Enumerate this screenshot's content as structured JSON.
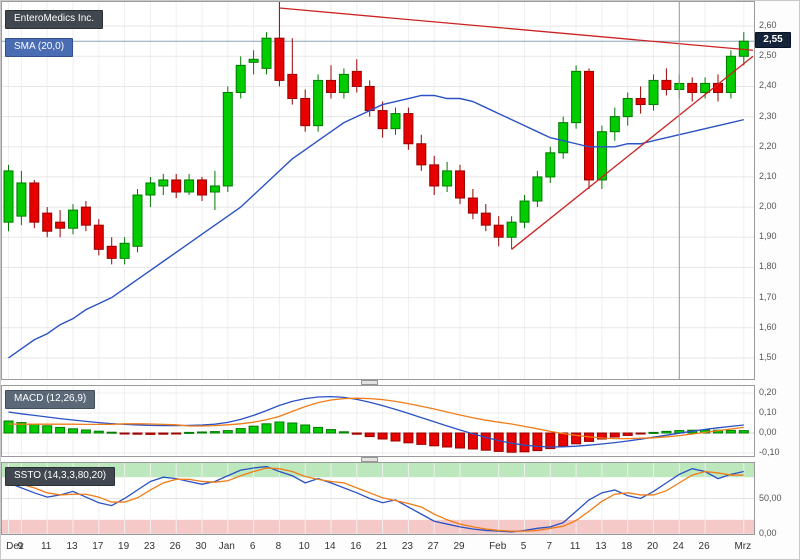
{
  "labels": {
    "instrument": "EnteroMedics Inc.",
    "sma": "SMA (20,0)",
    "macd": "MACD (12,26,9)",
    "ssto": "SSTO (14,3,3,80,20)",
    "current_price": "2,55"
  },
  "colors": {
    "up": "#00cc00",
    "up_border": "#007a00",
    "down": "#e60000",
    "down_border": "#990000",
    "sma": "#2b52c4",
    "signal_orange": "#ef7d18",
    "trend": "#cc2222",
    "last_price_line": "#8aa6b4",
    "overbought_band": "#bde7bd",
    "oversold_band": "#f6c9c9",
    "crosshair": "#999999"
  },
  "chart_data": {
    "type": "candlestick",
    "title": "EnteroMedics Inc.",
    "x_count": 58,
    "x_labels": [
      [
        0,
        "Dez"
      ],
      [
        1,
        "9"
      ],
      [
        3,
        "11"
      ],
      [
        5,
        "13"
      ],
      [
        7,
        "17"
      ],
      [
        9,
        "19"
      ],
      [
        11,
        "23"
      ],
      [
        13,
        "26"
      ],
      [
        15,
        "30"
      ],
      [
        17,
        "Jan"
      ],
      [
        19,
        "6"
      ],
      [
        21,
        "8"
      ],
      [
        23,
        "10"
      ],
      [
        25,
        "14"
      ],
      [
        27,
        "16"
      ],
      [
        29,
        "21"
      ],
      [
        31,
        "23"
      ],
      [
        33,
        "27"
      ],
      [
        35,
        "29"
      ],
      [
        38,
        "Feb"
      ],
      [
        40,
        "5"
      ],
      [
        42,
        "7"
      ],
      [
        44,
        "11"
      ],
      [
        46,
        "13"
      ],
      [
        48,
        "18"
      ],
      [
        50,
        "20"
      ],
      [
        52,
        "24"
      ],
      [
        54,
        "26"
      ],
      [
        57,
        "Mrz"
      ]
    ],
    "price_panel": {
      "ylim": [
        1.43,
        2.68
      ],
      "yticks": [
        "2,60",
        "2,50",
        "2,40",
        "2,30",
        "2,20",
        "2,10",
        "2,00",
        "1,90",
        "1,80",
        "1,70",
        "1,60",
        "1,50"
      ],
      "current_price": 2.55,
      "current_price_label": "2,55",
      "crosshair_index": 52,
      "candles": [
        [
          1.95,
          2.14,
          1.92,
          2.12
        ],
        [
          1.97,
          2.12,
          1.94,
          2.08
        ],
        [
          2.08,
          2.09,
          1.93,
          1.95
        ],
        [
          1.98,
          2.0,
          1.9,
          1.92
        ],
        [
          1.95,
          1.99,
          1.9,
          1.93
        ],
        [
          1.93,
          2.01,
          1.91,
          1.99
        ],
        [
          2.0,
          2.02,
          1.92,
          1.94
        ],
        [
          1.94,
          1.96,
          1.84,
          1.86
        ],
        [
          1.87,
          1.9,
          1.81,
          1.83
        ],
        [
          1.83,
          1.9,
          1.81,
          1.88
        ],
        [
          1.87,
          2.06,
          1.85,
          2.04
        ],
        [
          2.04,
          2.1,
          2.0,
          2.08
        ],
        [
          2.07,
          2.11,
          2.04,
          2.09
        ],
        [
          2.09,
          2.11,
          2.03,
          2.05
        ],
        [
          2.05,
          2.11,
          2.04,
          2.09
        ],
        [
          2.09,
          2.1,
          2.02,
          2.04
        ],
        [
          2.05,
          2.12,
          1.99,
          2.07
        ],
        [
          2.07,
          2.4,
          2.05,
          2.38
        ],
        [
          2.38,
          2.5,
          2.36,
          2.47
        ],
        [
          2.48,
          2.52,
          2.44,
          2.49
        ],
        [
          2.46,
          2.58,
          2.44,
          2.56
        ],
        [
          2.56,
          2.68,
          2.4,
          2.42
        ],
        [
          2.44,
          2.56,
          2.34,
          2.36
        ],
        [
          2.36,
          2.39,
          2.25,
          2.27
        ],
        [
          2.27,
          2.44,
          2.25,
          2.42
        ],
        [
          2.42,
          2.47,
          2.36,
          2.38
        ],
        [
          2.38,
          2.46,
          2.36,
          2.44
        ],
        [
          2.45,
          2.49,
          2.38,
          2.4
        ],
        [
          2.4,
          2.42,
          2.3,
          2.32
        ],
        [
          2.32,
          2.35,
          2.23,
          2.26
        ],
        [
          2.26,
          2.33,
          2.24,
          2.31
        ],
        [
          2.31,
          2.33,
          2.19,
          2.21
        ],
        [
          2.21,
          2.24,
          2.12,
          2.14
        ],
        [
          2.14,
          2.17,
          2.04,
          2.07
        ],
        [
          2.07,
          2.15,
          2.05,
          2.12
        ],
        [
          2.12,
          2.14,
          2.01,
          2.03
        ],
        [
          2.03,
          2.06,
          1.96,
          1.98
        ],
        [
          1.98,
          2.01,
          1.92,
          1.94
        ],
        [
          1.94,
          1.97,
          1.87,
          1.9
        ],
        [
          1.9,
          1.97,
          1.86,
          1.95
        ],
        [
          1.95,
          2.04,
          1.93,
          2.02
        ],
        [
          2.02,
          2.12,
          2.0,
          2.1
        ],
        [
          2.1,
          2.2,
          2.08,
          2.18
        ],
        [
          2.18,
          2.3,
          2.16,
          2.28
        ],
        [
          2.28,
          2.47,
          2.26,
          2.45
        ],
        [
          2.45,
          2.46,
          2.06,
          2.09
        ],
        [
          2.09,
          2.27,
          2.06,
          2.25
        ],
        [
          2.25,
          2.33,
          2.22,
          2.3
        ],
        [
          2.3,
          2.38,
          2.27,
          2.36
        ],
        [
          2.36,
          2.4,
          2.31,
          2.34
        ],
        [
          2.34,
          2.44,
          2.32,
          2.42
        ],
        [
          2.42,
          2.46,
          2.37,
          2.39
        ],
        [
          2.39,
          2.44,
          2.36,
          2.41
        ],
        [
          2.41,
          2.43,
          2.35,
          2.38
        ],
        [
          2.38,
          2.43,
          2.36,
          2.41
        ],
        [
          2.41,
          2.44,
          2.35,
          2.38
        ],
        [
          2.38,
          2.52,
          2.36,
          2.5
        ],
        [
          2.5,
          2.58,
          2.47,
          2.55
        ]
      ],
      "sma20": [
        1.5,
        1.53,
        1.56,
        1.58,
        1.61,
        1.63,
        1.66,
        1.68,
        1.7,
        1.73,
        1.76,
        1.79,
        1.82,
        1.85,
        1.88,
        1.91,
        1.94,
        1.97,
        2.0,
        2.04,
        2.08,
        2.12,
        2.16,
        2.19,
        2.22,
        2.25,
        2.28,
        2.3,
        2.32,
        2.34,
        2.35,
        2.36,
        2.37,
        2.37,
        2.36,
        2.36,
        2.35,
        2.33,
        2.31,
        2.29,
        2.27,
        2.25,
        2.23,
        2.22,
        2.21,
        2.2,
        2.2,
        2.2,
        2.21,
        2.21,
        2.22,
        2.23,
        2.24,
        2.25,
        2.26,
        2.27,
        2.28,
        2.29
      ],
      "trendlines": [
        {
          "x1": 21,
          "p1": 2.66,
          "x2": 58,
          "p2": 2.52
        },
        {
          "x1": 39,
          "p1": 1.86,
          "x2": 58,
          "p2": 2.5
        }
      ]
    },
    "macd_panel": {
      "ylim": [
        -0.115,
        0.235
      ],
      "yticks": [
        "0,20",
        "0,10",
        "0,00",
        "-0,10"
      ],
      "histogram": [
        0.06,
        0.052,
        0.044,
        0.036,
        0.028,
        0.021,
        0.015,
        0.009,
        0.004,
        -0.003,
        -0.006,
        -0.007,
        -0.006,
        -0.004,
        0.003,
        0.005,
        0.007,
        0.012,
        0.022,
        0.034,
        0.046,
        0.055,
        0.05,
        0.04,
        0.028,
        0.017,
        0.006,
        -0.006,
        -0.018,
        -0.03,
        -0.04,
        -0.049,
        -0.057,
        -0.064,
        -0.07,
        -0.075,
        -0.08,
        -0.086,
        -0.092,
        -0.096,
        -0.094,
        -0.088,
        -0.078,
        -0.066,
        -0.054,
        -0.042,
        -0.03,
        -0.02,
        -0.012,
        -0.005,
        0.003,
        0.008,
        0.012,
        0.014,
        0.015,
        0.014,
        0.013,
        0.012
      ],
      "macd": [
        0.105,
        0.096,
        0.088,
        0.08,
        0.072,
        0.065,
        0.058,
        0.052,
        0.047,
        0.043,
        0.04,
        0.038,
        0.037,
        0.037,
        0.038,
        0.04,
        0.044,
        0.053,
        0.068,
        0.088,
        0.112,
        0.138,
        0.158,
        0.172,
        0.18,
        0.182,
        0.178,
        0.168,
        0.154,
        0.137,
        0.118,
        0.098,
        0.077,
        0.056,
        0.035,
        0.015,
        -0.004,
        -0.022,
        -0.038,
        -0.051,
        -0.061,
        -0.067,
        -0.07,
        -0.069,
        -0.066,
        -0.061,
        -0.055,
        -0.048,
        -0.04,
        -0.031,
        -0.021,
        -0.011,
        -0.001,
        0.009,
        0.018,
        0.026,
        0.033,
        0.04
      ],
      "signal": [
        0.045,
        0.044,
        0.044,
        0.044,
        0.044,
        0.044,
        0.043,
        0.043,
        0.043,
        0.046,
        0.046,
        0.045,
        0.043,
        0.041,
        0.035,
        0.035,
        0.037,
        0.041,
        0.046,
        0.054,
        0.066,
        0.083,
        0.108,
        0.132,
        0.152,
        0.165,
        0.172,
        0.174,
        0.172,
        0.167,
        0.158,
        0.147,
        0.134,
        0.12,
        0.105,
        0.09,
        0.076,
        0.064,
        0.054,
        0.045,
        0.033,
        0.021,
        0.008,
        -0.003,
        -0.012,
        -0.019,
        -0.025,
        -0.028,
        -0.028,
        -0.026,
        -0.024,
        -0.019,
        -0.013,
        -0.005,
        0.003,
        0.012,
        0.02,
        0.028
      ]
    },
    "ssto_panel": {
      "ylim": [
        0,
        100
      ],
      "yticks": [
        "50,00",
        "0,00"
      ],
      "overbought": 80,
      "oversold": 20,
      "k": [
        72,
        65,
        58,
        52,
        55,
        60,
        52,
        44,
        40,
        50,
        62,
        74,
        80,
        78,
        74,
        70,
        74,
        82,
        90,
        93,
        95,
        88,
        82,
        72,
        78,
        72,
        65,
        58,
        50,
        44,
        48,
        38,
        28,
        18,
        14,
        10,
        7,
        5,
        4,
        3,
        5,
        8,
        10,
        16,
        32,
        48,
        58,
        62,
        54,
        50,
        60,
        72,
        84,
        92,
        88,
        78,
        84,
        88
      ],
      "d": [
        75,
        70,
        65,
        58,
        55,
        56,
        56,
        52,
        45,
        45,
        51,
        62,
        72,
        77,
        77,
        74,
        73,
        75,
        82,
        88,
        93,
        92,
        88,
        81,
        77,
        74,
        72,
        65,
        58,
        51,
        47,
        43,
        38,
        28,
        20,
        14,
        10,
        7,
        5,
        4,
        4,
        5,
        8,
        11,
        19,
        32,
        46,
        56,
        58,
        55,
        55,
        61,
        72,
        83,
        88,
        86,
        83,
        83
      ]
    }
  }
}
